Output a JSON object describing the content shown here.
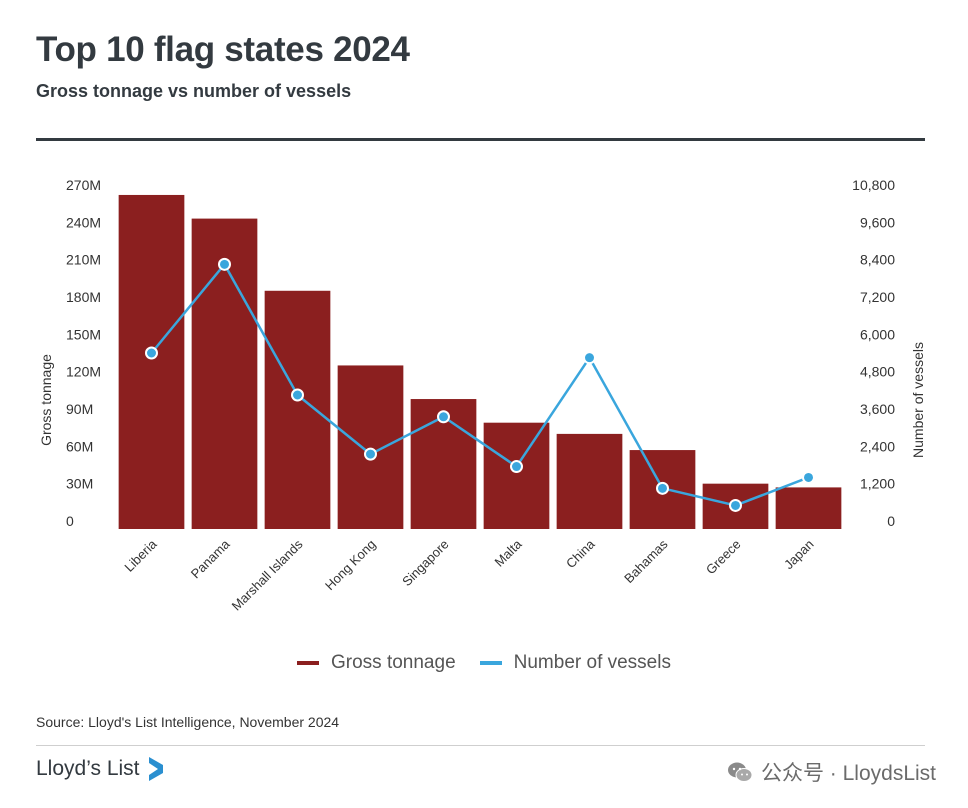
{
  "header": {
    "title": "Top 10 flag states 2024",
    "subtitle": "Gross tonnage vs number of vessels"
  },
  "legend": {
    "items": [
      {
        "label": "Gross tonnage",
        "color": "#8b1f1f"
      },
      {
        "label": "Number of vessels",
        "color": "#3aa6dd"
      }
    ]
  },
  "footer": {
    "source": "Source: Lloyd's List Intelligence, November 2024",
    "brand": "Lloyd’s List",
    "watermark": "公众号 · LloydsList"
  },
  "chart_data": {
    "type": "bar",
    "categories": [
      "Liberia",
      "Panama",
      "Marshall Islands",
      "Hong Kong",
      "Singapore",
      "Malta",
      "China",
      "Bahamas",
      "Greece",
      "Japan"
    ],
    "series": [
      {
        "name": "Gross tonnage",
        "type": "bar",
        "axis": "left",
        "color": "#8b1f1f",
        "values": [
          262,
          243,
          185,
          125,
          98,
          79,
          70,
          57,
          30,
          27
        ]
      },
      {
        "name": "Number of vessels",
        "type": "line",
        "axis": "right",
        "color": "#3aa6dd",
        "values": [
          5400,
          8250,
          4050,
          2150,
          3350,
          1750,
          5250,
          1050,
          500,
          1400
        ]
      }
    ],
    "yleft": {
      "label": "Gross tonnage",
      "ylim": [
        0,
        270
      ],
      "ticks": [
        "0",
        "30M",
        "60M",
        "90M",
        "120M",
        "150M",
        "180M",
        "210M",
        "240M",
        "270M"
      ]
    },
    "yright": {
      "label": "Number of vessels",
      "ylim": [
        0,
        10800
      ],
      "ticks": [
        "0",
        "1,200",
        "2,400",
        "3,600",
        "4,800",
        "6,000",
        "7,200",
        "8,400",
        "9,600",
        "10,800"
      ]
    },
    "legend_position": "bottom",
    "grid": false
  }
}
